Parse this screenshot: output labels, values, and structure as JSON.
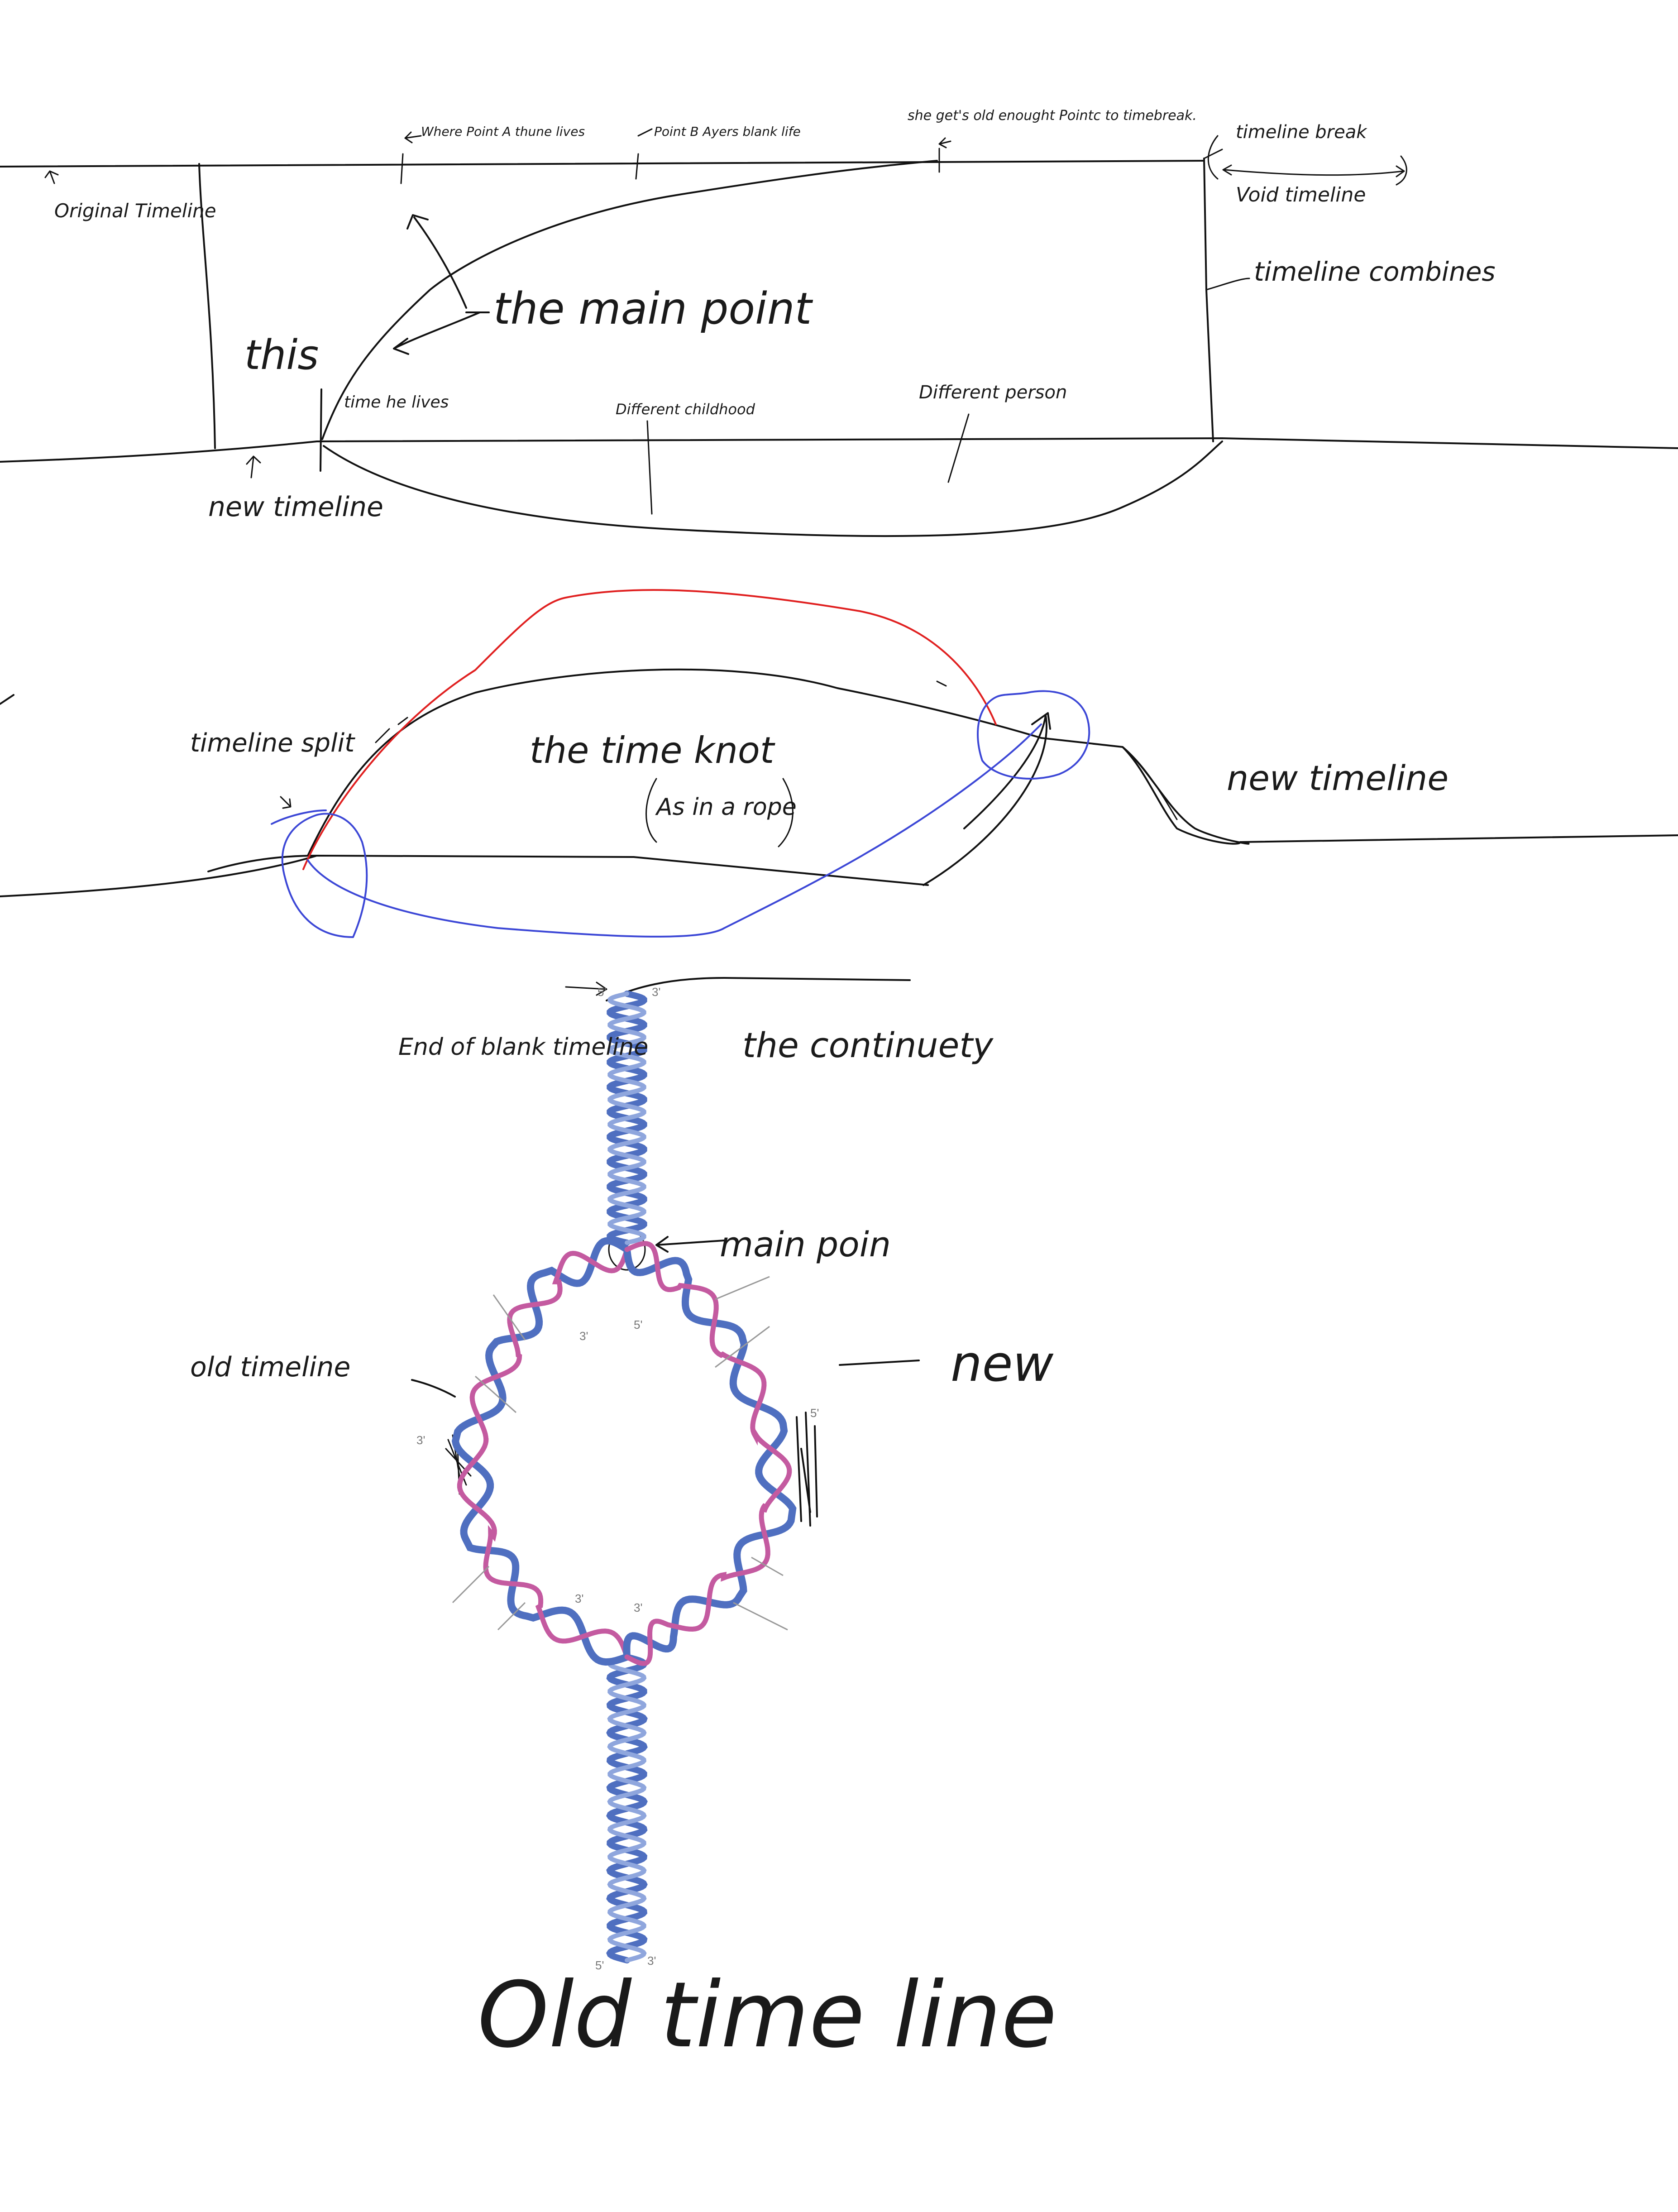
{
  "colors": {
    "ink": "#111111",
    "red_path": "#e02020",
    "blue_path": "#3c47d6",
    "helix_blue": "#4f6fc0",
    "helix_pink": "#c45aa0",
    "background": "#ffffff"
  },
  "section1": {
    "original_timeline": "Original Timeline",
    "where_point_a": "Where Point A thune lives",
    "point_b": "Point B Ayers blank life",
    "she_gets_old": "she get's old enought Pointc to timebreak.",
    "timeline_break": "timeline break",
    "void_timeline": "Void timeline",
    "timeline_combines": "timeline combines",
    "the_main_point": "the main point",
    "this": "this",
    "time_he_lives": "time he lives",
    "different_childhood": "Different childhood",
    "different_person": "Different person",
    "new_timeline": "new timeline"
  },
  "section2": {
    "timeline_split": "timeline split",
    "the_time_knot": "the time knot",
    "as_in_a_rope": "As in a rope",
    "new_timeline": "new timeline"
  },
  "section3": {
    "end_of_blank_timeline": "End of blank timeline",
    "the_continuety": "the continuety",
    "main_poin": "main poin",
    "old_timeline_left": "old timeline",
    "new": "new",
    "old_timeline_bottom": "Old time line"
  },
  "helix_labels": {
    "five_prime": "5'",
    "three_prime": "3'"
  }
}
